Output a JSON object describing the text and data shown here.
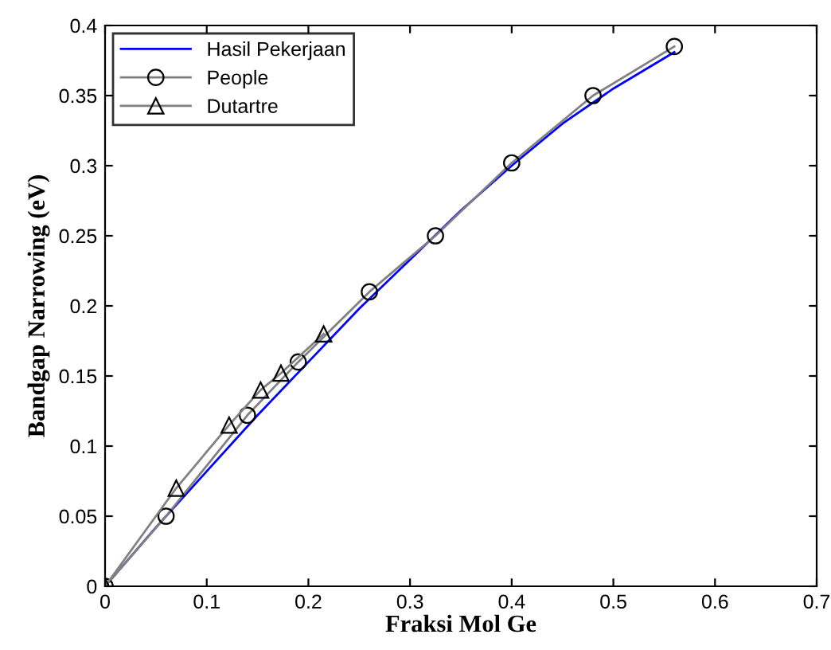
{
  "chart_data": {
    "type": "line",
    "xlabel": "Fraksi Mol Ge",
    "ylabel": "Bandgap Narrowing (eV)",
    "xlim": [
      0,
      0.7
    ],
    "xticks": [
      0,
      0.1,
      0.2,
      0.3,
      0.4,
      0.5,
      0.6,
      0.7
    ],
    "ylim": [
      0,
      0.4
    ],
    "yticks": [
      0,
      0.05,
      0.1,
      0.15,
      0.2,
      0.25,
      0.3,
      0.35,
      0.4
    ],
    "grid": false,
    "legend": "top left",
    "series": [
      {
        "name": "Hasil Pekerjaan",
        "color": "#0000ff",
        "marker": "none",
        "x": [
          0,
          0.05,
          0.1,
          0.15,
          0.2,
          0.25,
          0.3,
          0.35,
          0.4,
          0.45,
          0.5,
          0.56
        ],
        "values": [
          0,
          0.042,
          0.082,
          0.122,
          0.16,
          0.198,
          0.233,
          0.268,
          0.3,
          0.33,
          0.355,
          0.381
        ]
      },
      {
        "name": "People",
        "color": "#808080",
        "marker": "circle",
        "x": [
          0,
          0.06,
          0.14,
          0.19,
          0.26,
          0.325,
          0.4,
          0.48,
          0.56
        ],
        "values": [
          0,
          0.05,
          0.122,
          0.16,
          0.21,
          0.25,
          0.302,
          0.35,
          0.385
        ]
      },
      {
        "name": "Dutartre",
        "color": "#808080",
        "marker": "triangle",
        "x": [
          0,
          0.07,
          0.122,
          0.153,
          0.173,
          0.215
        ],
        "values": [
          0,
          0.07,
          0.115,
          0.14,
          0.152,
          0.18
        ]
      }
    ]
  }
}
